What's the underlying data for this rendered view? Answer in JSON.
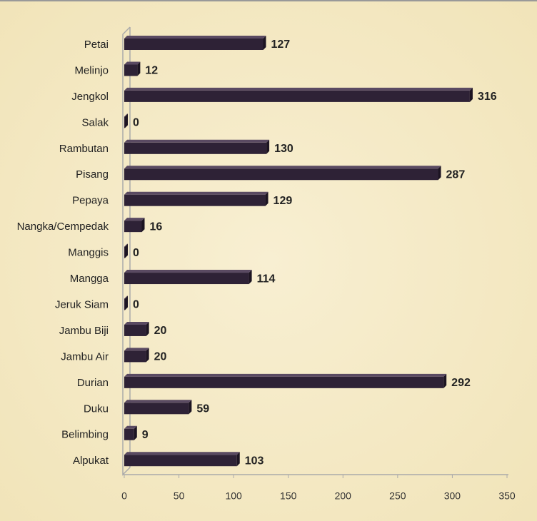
{
  "chart_data": {
    "type": "bar",
    "orientation": "horizontal",
    "categories": [
      "Petai",
      "Melinjo",
      "Jengkol",
      "Salak",
      "Rambutan",
      "Pisang",
      "Pepaya",
      "Nangka/Cempedak",
      "Manggis",
      "Mangga",
      "Jeruk Siam",
      "Jambu Biji",
      "Jambu Air",
      "Durian",
      "Duku",
      "Belimbing",
      "Alpukat"
    ],
    "values": [
      127,
      12,
      316,
      0,
      130,
      287,
      129,
      16,
      0,
      114,
      0,
      20,
      20,
      292,
      59,
      9,
      103
    ],
    "color": "#2e2236",
    "xlim": [
      0,
      350
    ],
    "xticks": [
      0,
      50,
      100,
      150,
      200,
      250,
      300,
      350
    ],
    "grid": false
  }
}
